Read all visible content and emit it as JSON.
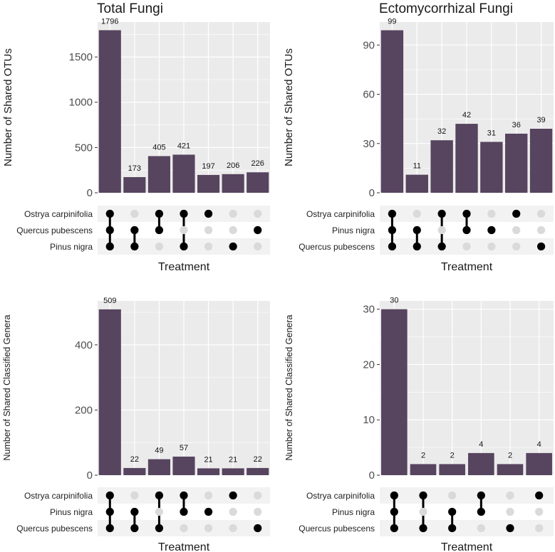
{
  "colors": {
    "bar": "#57445f",
    "panel_bg": "#ebebeb",
    "gridline": "#ffffff",
    "stripe": "#f2f2f2",
    "dot_active": "#000000",
    "dot_inactive": "#dadada",
    "text": "#1a1a1a",
    "tick_text": "#4d4d4d"
  },
  "chart_data": [
    {
      "type": "bar",
      "subtype": "upset",
      "title": "Total Fungi",
      "ylabel": "Number of Shared OTUs",
      "xlabel": "Treatment",
      "ylim": [
        0,
        1886
      ],
      "yticks": [
        0,
        500,
        1000,
        1500
      ],
      "sets": [
        "Ostrya carpinifolia",
        "Quercus pubescens",
        "Pinus nigra"
      ],
      "values": [
        1796,
        173,
        405,
        421,
        197,
        206,
        226
      ],
      "value_labels": [
        "1796",
        "173",
        "405",
        "421",
        "197",
        "206",
        "226"
      ],
      "membership": [
        [
          1,
          1,
          1
        ],
        [
          0,
          1,
          1
        ],
        [
          1,
          1,
          0
        ],
        [
          1,
          0,
          1
        ],
        [
          1,
          0,
          0
        ],
        [
          0,
          0,
          1
        ],
        [
          0,
          1,
          0
        ]
      ]
    },
    {
      "type": "bar",
      "subtype": "upset",
      "title": "Ectomycorrhizal Fungi",
      "ylabel": "Number of Shared OTUs",
      "xlabel": "Treatment",
      "ylim": [
        0,
        104
      ],
      "yticks": [
        0,
        30,
        60,
        90
      ],
      "sets": [
        "Ostrya carpinifolia",
        "Pinus nigra",
        "Quercus pubescens"
      ],
      "values": [
        99,
        11,
        32,
        42,
        31,
        36,
        39
      ],
      "value_labels": [
        "99",
        "11",
        "32",
        "42",
        "31",
        "36",
        "39"
      ],
      "membership": [
        [
          1,
          1,
          1
        ],
        [
          0,
          1,
          1
        ],
        [
          1,
          0,
          1
        ],
        [
          1,
          1,
          0
        ],
        [
          0,
          1,
          0
        ],
        [
          1,
          0,
          0
        ],
        [
          0,
          0,
          1
        ]
      ]
    },
    {
      "type": "bar",
      "subtype": "upset",
      "title": "",
      "ylabel": "Number of Shared Classified Genera",
      "xlabel": "Treatment",
      "ylim": [
        0,
        535
      ],
      "yticks": [
        0,
        200,
        400
      ],
      "sets": [
        "Ostrya carpinifolia",
        "Pinus nigra",
        "Quercus pubescens"
      ],
      "values": [
        509,
        22,
        49,
        57,
        21,
        21,
        22
      ],
      "value_labels": [
        "509",
        "22",
        "49",
        "57",
        "21",
        "21",
        "22"
      ],
      "membership": [
        [
          1,
          1,
          1
        ],
        [
          0,
          1,
          1
        ],
        [
          1,
          0,
          1
        ],
        [
          1,
          1,
          0
        ],
        [
          0,
          1,
          0
        ],
        [
          1,
          0,
          0
        ],
        [
          0,
          0,
          1
        ]
      ]
    },
    {
      "type": "bar",
      "subtype": "upset",
      "title": "",
      "ylabel": "Number of Shared Classified Genera",
      "xlabel": "Treatment",
      "ylim": [
        0,
        31.5
      ],
      "yticks": [
        0,
        10,
        20,
        30
      ],
      "sets": [
        "Ostrya carpinifolia",
        "Pinus nigra",
        "Quercus pubescens"
      ],
      "values": [
        30,
        2,
        2,
        4,
        2,
        4
      ],
      "value_labels": [
        "30",
        "2",
        "2",
        "4",
        "2",
        "4"
      ],
      "membership": [
        [
          1,
          1,
          1
        ],
        [
          1,
          0,
          1
        ],
        [
          0,
          1,
          1
        ],
        [
          1,
          1,
          0
        ],
        [
          0,
          0,
          1
        ],
        [
          1,
          0,
          0
        ]
      ]
    }
  ]
}
